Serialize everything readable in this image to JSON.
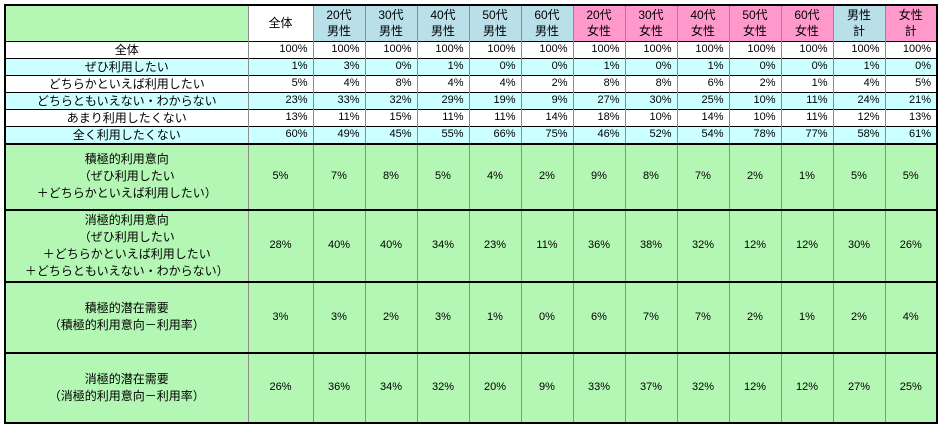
{
  "chart_data": {
    "type": "table",
    "title": "",
    "corner_label": "",
    "colors": {
      "header_green": "#b4f7b4",
      "summary_green": "#b4f7b4",
      "male_blue": "#b9dfe9",
      "female_pink": "#ff99cc",
      "zebra_cyan": "#ccffff",
      "grid_gray": "#8c8c8c",
      "grid_black": "#000000"
    },
    "columns": [
      {
        "id": "overall",
        "group": "all",
        "label": "全体"
      },
      {
        "id": "male-20s",
        "group": "male",
        "label": "20代\n男性"
      },
      {
        "id": "male-30s",
        "group": "male",
        "label": "30代\n男性"
      },
      {
        "id": "male-40s",
        "group": "male",
        "label": "40代\n男性"
      },
      {
        "id": "male-50s",
        "group": "male",
        "label": "50代\n男性"
      },
      {
        "id": "male-60s",
        "group": "male",
        "label": "60代\n男性"
      },
      {
        "id": "female-20s",
        "group": "female",
        "label": "20代\n女性"
      },
      {
        "id": "female-30s",
        "group": "female",
        "label": "30代\n女性"
      },
      {
        "id": "female-40s",
        "group": "female",
        "label": "40代\n女性"
      },
      {
        "id": "female-50s",
        "group": "female",
        "label": "50代\n女性"
      },
      {
        "id": "female-60s",
        "group": "female",
        "label": "60代\n女性"
      },
      {
        "id": "male-total",
        "group": "male",
        "label": "男性\n計"
      },
      {
        "id": "female-total",
        "group": "female",
        "label": "女性\n計"
      }
    ],
    "rows": [
      {
        "id": "overall",
        "label": "全体",
        "values": [
          "100%",
          "100%",
          "100%",
          "100%",
          "100%",
          "100%",
          "100%",
          "100%",
          "100%",
          "100%",
          "100%",
          "100%",
          "100%"
        ]
      },
      {
        "id": "want-to-use",
        "label": "ぜひ利用したい",
        "values": [
          "1%",
          "3%",
          "0%",
          "1%",
          "0%",
          "0%",
          "1%",
          "0%",
          "1%",
          "0%",
          "0%",
          "1%",
          "0%"
        ]
      },
      {
        "id": "somewhat-want-to-use",
        "label": "どちらかといえば利用したい",
        "values": [
          "5%",
          "4%",
          "8%",
          "4%",
          "4%",
          "2%",
          "8%",
          "8%",
          "6%",
          "2%",
          "1%",
          "4%",
          "5%"
        ]
      },
      {
        "id": "neutral-unknown",
        "label": "どちらともいえない・わからない",
        "values": [
          "23%",
          "33%",
          "32%",
          "29%",
          "19%",
          "9%",
          "27%",
          "30%",
          "25%",
          "10%",
          "11%",
          "24%",
          "21%"
        ]
      },
      {
        "id": "not-really-want",
        "label": "あまり利用したくない",
        "values": [
          "13%",
          "11%",
          "15%",
          "11%",
          "11%",
          "14%",
          "18%",
          "10%",
          "14%",
          "10%",
          "11%",
          "12%",
          "13%"
        ]
      },
      {
        "id": "not-want-at-all",
        "label": "全く利用したくない",
        "values": [
          "60%",
          "49%",
          "45%",
          "55%",
          "66%",
          "75%",
          "46%",
          "52%",
          "54%",
          "78%",
          "77%",
          "58%",
          "61%"
        ]
      },
      {
        "id": "positive-usage-intent",
        "label": "積極的利用意向\n（ぜひ利用したい\n＋どちらかといえば利用したい）",
        "values": [
          "5%",
          "7%",
          "8%",
          "5%",
          "4%",
          "2%",
          "9%",
          "8%",
          "7%",
          "2%",
          "1%",
          "5%",
          "5%"
        ]
      },
      {
        "id": "passive-usage-intent",
        "label": "消極的利用意向\n（ぜひ利用したい\n＋どちらかといえば利用したい\n＋どちらともいえない・わからない）",
        "values": [
          "28%",
          "40%",
          "40%",
          "34%",
          "23%",
          "11%",
          "36%",
          "38%",
          "32%",
          "12%",
          "12%",
          "30%",
          "26%"
        ]
      },
      {
        "id": "positive-latent-demand",
        "label": "積極的潜在需要\n（積極的利用意向－利用率）",
        "values": [
          "3%",
          "3%",
          "2%",
          "3%",
          "1%",
          "0%",
          "6%",
          "7%",
          "7%",
          "2%",
          "1%",
          "2%",
          "4%"
        ]
      },
      {
        "id": "passive-latent-demand",
        "label": "消極的潜在需要\n（消極的利用意向－利用率）",
        "values": [
          "26%",
          "36%",
          "34%",
          "32%",
          "20%",
          "9%",
          "33%",
          "37%",
          "32%",
          "12%",
          "12%",
          "27%",
          "25%"
        ]
      }
    ]
  }
}
